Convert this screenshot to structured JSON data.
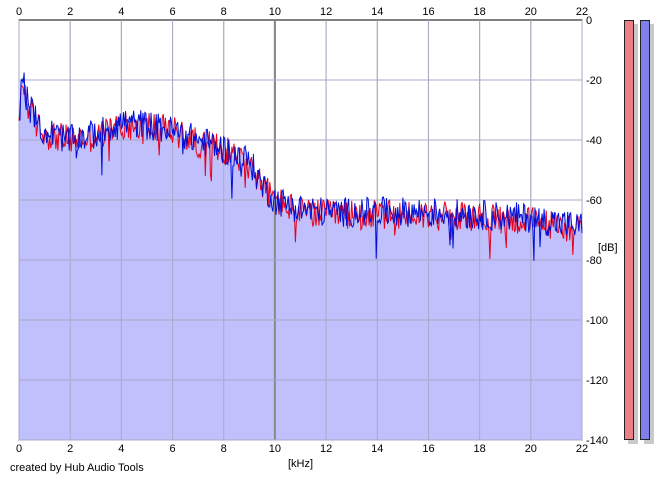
{
  "chart_data": {
    "type": "area",
    "xlabel": "[kHz]",
    "ylabel": "[dB]",
    "xlim": [
      0,
      22
    ],
    "ylim": [
      -140,
      0
    ],
    "x_ticks": [
      0,
      2,
      4,
      6,
      8,
      10,
      12,
      14,
      16,
      18,
      20,
      22
    ],
    "y_ticks": [
      -20,
      -40,
      -60,
      -80,
      -100,
      -120,
      -140
    ],
    "y_tick_top_label": "0",
    "grid": true,
    "x_step_khz": 0.04,
    "series": [
      {
        "color": "#e8001c",
        "envelope_x": [
          0,
          0.1,
          0.3,
          0.6,
          1,
          2,
          3,
          4,
          5,
          6,
          7,
          8,
          9,
          9.5,
          10,
          11,
          12,
          14,
          16,
          18,
          20,
          22
        ],
        "envelope_y": [
          -38,
          -19,
          -27,
          -34,
          -38,
          -40,
          -39,
          -35,
          -35,
          -37,
          -41,
          -43,
          -48,
          -55,
          -60,
          -64,
          -65,
          -65,
          -65,
          -66,
          -67,
          -70
        ]
      },
      {
        "color": "#0010d8",
        "envelope_x": [
          0,
          0.1,
          0.3,
          0.6,
          1,
          2,
          3,
          4,
          5,
          6,
          7,
          8,
          9,
          9.5,
          10,
          11,
          12,
          14,
          16,
          18,
          20,
          22
        ],
        "envelope_y": [
          -37,
          -18,
          -26,
          -33,
          -37,
          -40,
          -38,
          -34,
          -35,
          -37,
          -40,
          -43,
          -47,
          -55,
          -60,
          -63,
          -64,
          -64,
          -64,
          -65,
          -66,
          -69
        ]
      }
    ],
    "fill_color": "#c0c0fc",
    "noise_amplitude_db": 5
  },
  "credit": "created by Hub Audio Tools",
  "meters": {
    "left_color": "#ee7f86",
    "right_color": "#7f7fee"
  }
}
